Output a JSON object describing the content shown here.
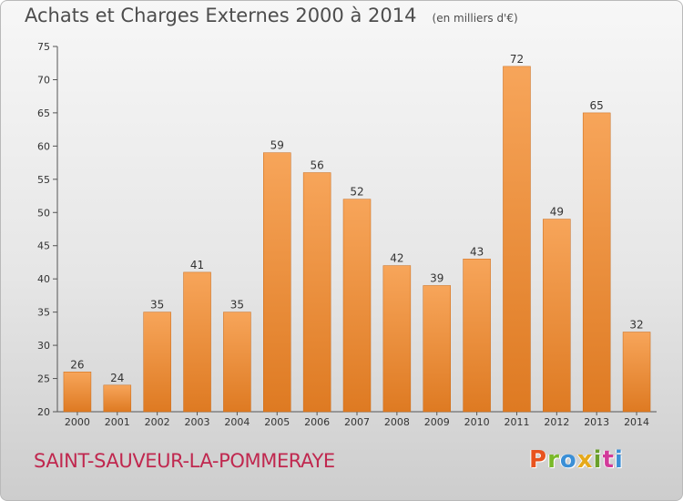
{
  "header": {
    "title": "Achats et Charges Externes 2000 à 2014",
    "unit_note": "(en milliers d'€)"
  },
  "footer": {
    "commune": "SAINT-SAUVEUR-LA-POMMERAYE",
    "brand_letters": [
      "P",
      "r",
      "o",
      "x",
      "i",
      "t",
      "i"
    ]
  },
  "colors": {
    "bar_light": "#f7a55a",
    "bar_dark": "#de7a22",
    "commune_text": "#c0284f",
    "brand_letter_colors": [
      "#e8531f",
      "#7ab929",
      "#3b8fd6",
      "#e6a91a",
      "#6a9f2b",
      "#d23b9a",
      "#3b8fd6"
    ]
  },
  "chart_data": {
    "type": "bar",
    "categories": [
      "2000",
      "2001",
      "2002",
      "2003",
      "2004",
      "2005",
      "2006",
      "2007",
      "2008",
      "2009",
      "2010",
      "2011",
      "2012",
      "2013",
      "2014"
    ],
    "values": [
      26,
      24,
      35,
      41,
      35,
      59,
      56,
      52,
      42,
      39,
      43,
      72,
      49,
      65,
      32
    ],
    "title": "Achats et Charges Externes 2000 à 2014",
    "xlabel": "",
    "ylabel": "",
    "ylim": [
      20,
      75
    ],
    "yticks": [
      20,
      25,
      30,
      35,
      40,
      45,
      50,
      55,
      60,
      65,
      70,
      75
    ],
    "grid": false,
    "data_labels": true
  }
}
